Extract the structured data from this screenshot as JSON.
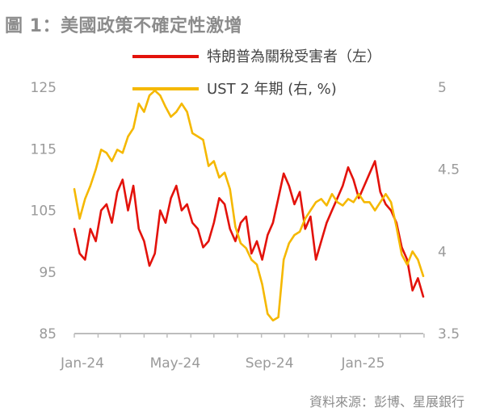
{
  "title": "圖 1：美國政策不確定性激增",
  "source": "資料來源：彭博、星展銀行",
  "colors": {
    "tariff": "#e3120b",
    "ust": "#f5b800",
    "axis": "#bdbdbd",
    "text": "#8c8c8c"
  },
  "chart_data": {
    "type": "line",
    "legend": [
      {
        "name": "特朗普為關稅受害者（左）",
        "color": "#e3120b"
      },
      {
        "name": "UST 2 年期 (右, %)",
        "color": "#f5b800"
      }
    ],
    "x_ticks": [
      "Jan-24",
      "May-24",
      "Sep-24",
      "Jan-25"
    ],
    "x_range": [
      "2024-01-01",
      "2025-03-31"
    ],
    "y_left": {
      "ticks": [
        85,
        95,
        105,
        115,
        125
      ],
      "range": [
        85,
        125
      ]
    },
    "y_right": {
      "ticks": [
        3.5,
        4,
        4.5,
        5
      ],
      "range": [
        3.5,
        5
      ]
    },
    "series": [
      {
        "name": "特朗普為關稅受害者（左）",
        "axis": "left",
        "x": [
          "2024-01-01",
          "2024-01-08",
          "2024-01-15",
          "2024-01-22",
          "2024-01-29",
          "2024-02-05",
          "2024-02-12",
          "2024-02-19",
          "2024-02-26",
          "2024-03-04",
          "2024-03-11",
          "2024-03-18",
          "2024-03-25",
          "2024-04-01",
          "2024-04-08",
          "2024-04-15",
          "2024-04-22",
          "2024-04-29",
          "2024-05-06",
          "2024-05-13",
          "2024-05-20",
          "2024-05-27",
          "2024-06-03",
          "2024-06-10",
          "2024-06-17",
          "2024-06-24",
          "2024-07-01",
          "2024-07-08",
          "2024-07-15",
          "2024-07-22",
          "2024-07-29",
          "2024-08-05",
          "2024-08-12",
          "2024-08-19",
          "2024-08-26",
          "2024-09-02",
          "2024-09-09",
          "2024-09-16",
          "2024-09-23",
          "2024-09-30",
          "2024-10-07",
          "2024-10-14",
          "2024-10-21",
          "2024-10-28",
          "2024-11-04",
          "2024-11-11",
          "2024-11-18",
          "2024-11-25",
          "2024-12-02",
          "2024-12-09",
          "2024-12-16",
          "2024-12-23",
          "2024-12-30",
          "2025-01-06",
          "2025-01-13",
          "2025-01-20",
          "2025-01-27",
          "2025-02-03",
          "2025-02-10",
          "2025-02-17",
          "2025-02-24",
          "2025-03-03",
          "2025-03-10",
          "2025-03-17",
          "2025-03-24",
          "2025-03-31"
        ],
        "values": [
          102,
          98,
          97,
          102,
          100,
          105,
          106,
          103,
          108,
          110,
          105,
          109,
          102,
          100,
          96,
          98,
          105,
          103,
          107,
          109,
          105,
          106,
          103,
          102,
          99,
          100,
          103,
          107,
          106,
          102,
          100,
          103,
          104,
          98,
          100,
          97,
          101,
          103,
          107,
          111,
          109,
          106,
          108,
          102,
          104,
          97,
          100,
          103,
          105,
          107,
          109,
          112,
          110,
          107,
          109,
          111,
          113,
          108,
          106,
          105,
          103,
          99,
          97,
          92,
          94,
          91
        ]
      },
      {
        "name": "UST 2 年期 (右, %)",
        "axis": "right",
        "x": [
          "2024-01-01",
          "2024-01-08",
          "2024-01-15",
          "2024-01-22",
          "2024-01-29",
          "2024-02-05",
          "2024-02-12",
          "2024-02-19",
          "2024-02-26",
          "2024-03-04",
          "2024-03-11",
          "2024-03-18",
          "2024-03-25",
          "2024-04-01",
          "2024-04-08",
          "2024-04-15",
          "2024-04-22",
          "2024-04-29",
          "2024-05-06",
          "2024-05-13",
          "2024-05-20",
          "2024-05-27",
          "2024-06-03",
          "2024-06-10",
          "2024-06-17",
          "2024-06-24",
          "2024-07-01",
          "2024-07-08",
          "2024-07-15",
          "2024-07-22",
          "2024-07-29",
          "2024-08-05",
          "2024-08-12",
          "2024-08-19",
          "2024-08-26",
          "2024-09-02",
          "2024-09-09",
          "2024-09-16",
          "2024-09-23",
          "2024-09-30",
          "2024-10-07",
          "2024-10-14",
          "2024-10-21",
          "2024-10-28",
          "2024-11-04",
          "2024-11-11",
          "2024-11-18",
          "2024-11-25",
          "2024-12-02",
          "2024-12-09",
          "2024-12-16",
          "2024-12-23",
          "2024-12-30",
          "2025-01-06",
          "2025-01-13",
          "2025-01-20",
          "2025-01-27",
          "2025-02-03",
          "2025-02-10",
          "2025-02-17",
          "2025-02-24",
          "2025-03-03",
          "2025-03-10",
          "2025-03-17",
          "2025-03-24",
          "2025-03-31"
        ],
        "values": [
          4.38,
          4.2,
          4.32,
          4.4,
          4.5,
          4.62,
          4.6,
          4.55,
          4.62,
          4.6,
          4.7,
          4.75,
          4.9,
          4.85,
          4.95,
          4.98,
          4.95,
          4.88,
          4.82,
          4.85,
          4.9,
          4.85,
          4.72,
          4.7,
          4.68,
          4.52,
          4.55,
          4.45,
          4.48,
          4.38,
          4.15,
          4.05,
          4.02,
          3.95,
          3.92,
          3.8,
          3.62,
          3.58,
          3.6,
          3.95,
          4.05,
          4.1,
          4.12,
          4.2,
          4.25,
          4.3,
          4.32,
          4.28,
          4.35,
          4.3,
          4.28,
          4.32,
          4.3,
          4.35,
          4.3,
          4.3,
          4.25,
          4.3,
          4.35,
          4.3,
          4.15,
          3.98,
          3.92,
          4.0,
          3.95,
          3.85
        ]
      }
    ]
  }
}
